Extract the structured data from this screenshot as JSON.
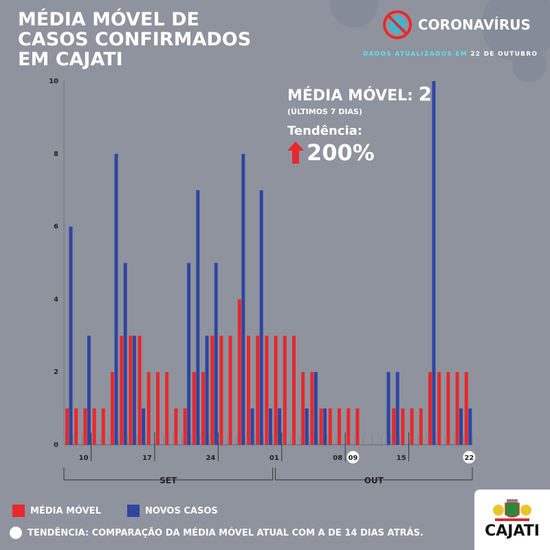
{
  "title": "MÉDIA MÓVEL DE CASOS CONFIRMADOS EM CAJATI",
  "brand": "CORONAVÍRUS",
  "updated_prefix": "DADOS ATUALIZADOS EM",
  "updated_date": "22 DE OUTUBRO",
  "moving_avg_label": "MÉDIA MÓVEL:",
  "moving_avg_value": "2",
  "moving_avg_sub": "(ÚLTIMOS 7 DIAS)",
  "trend_label": "Tendência:",
  "trend_value": "200%",
  "legend": {
    "red": "MÉDIA MÓVEL",
    "blue": "NOVOS CASOS",
    "note": "TENDÊNCIA: COMPARAÇÃO DA MÉDIA MÓVEL ATUAL COM A DE 14 DIAS ATRÁS."
  },
  "logo": "CAJATI",
  "colors": {
    "red": "#e8282b",
    "blue": "#2f45a0",
    "bg": "#8e939e"
  },
  "chart_data": {
    "type": "bar",
    "ylim": [
      0,
      10
    ],
    "yticks": [
      "0",
      "2",
      "4",
      "6",
      "8",
      "10"
    ],
    "series": [
      {
        "name": "MÉDIA MÓVEL",
        "values": [
          1,
          1,
          1,
          1,
          1,
          2,
          3,
          3,
          3,
          2,
          2,
          2,
          1,
          1,
          2,
          2,
          3,
          3,
          3,
          4,
          3,
          3,
          3,
          3,
          3,
          3,
          2,
          2,
          1,
          1,
          1,
          1,
          1,
          0,
          0,
          0,
          1,
          1,
          1,
          1,
          2,
          2,
          2,
          2,
          2
        ]
      },
      {
        "name": "NOVOS CASOS",
        "values": [
          6,
          0,
          3,
          0,
          0,
          8,
          5,
          3,
          1,
          0,
          0,
          0,
          0,
          5,
          7,
          3,
          5,
          0,
          0,
          8,
          1,
          7,
          1,
          1,
          0,
          0,
          1,
          2,
          1,
          0,
          0,
          0,
          0,
          0,
          0,
          2,
          2,
          0,
          0,
          0,
          10,
          0,
          0,
          1,
          1
        ]
      }
    ],
    "day_ticks": [
      {
        "label": "10",
        "slot": 3
      },
      {
        "label": "17",
        "slot": 10
      },
      {
        "label": "24",
        "slot": 17
      },
      {
        "label": "01",
        "slot": 24
      },
      {
        "label": "08",
        "slot": 31
      },
      {
        "label": "15",
        "slot": 38
      }
    ],
    "highlighted_days": [
      {
        "label": "09",
        "slot": 31.7
      },
      {
        "label": "22",
        "slot": 44.5
      }
    ],
    "months": [
      {
        "label": "SET",
        "from": 0,
        "to": 23
      },
      {
        "label": "OUT",
        "from": 23.3,
        "to": 45
      }
    ]
  }
}
